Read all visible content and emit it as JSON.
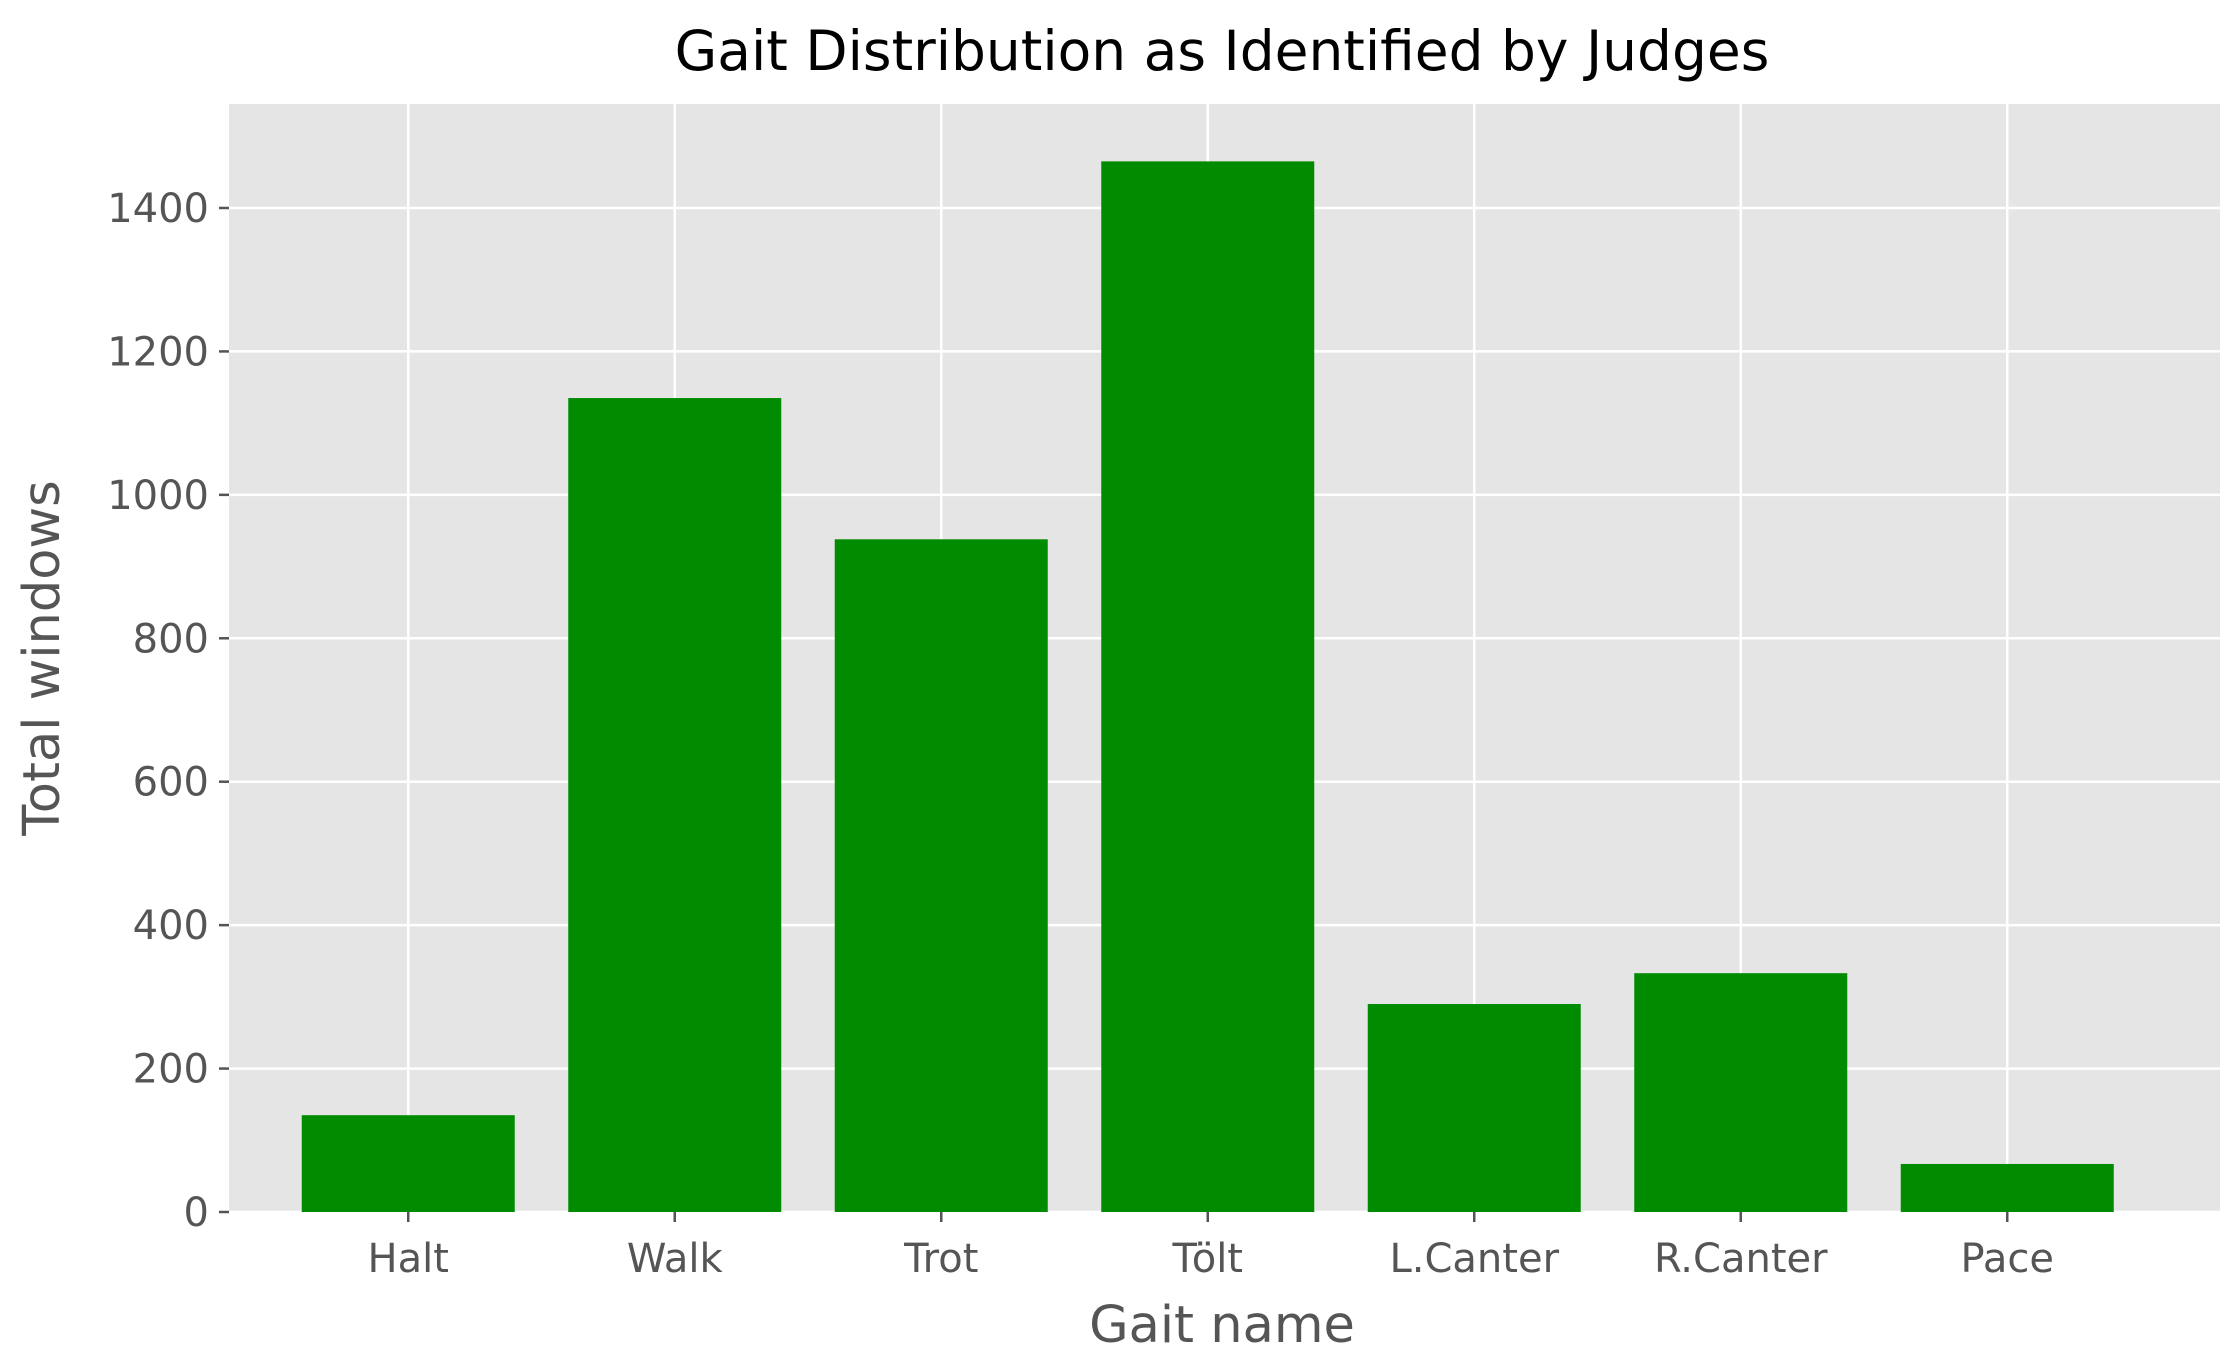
{
  "chart_data": {
    "type": "bar",
    "title": "Gait Distribution as Identified by Judges",
    "xlabel": "Gait name",
    "ylabel": "Total windows",
    "categories": [
      "Halt",
      "Walk",
      "Trot",
      "Tölt",
      "L.Canter",
      "R.Canter",
      "Pace"
    ],
    "values": [
      135,
      1135,
      938,
      1465,
      290,
      333,
      67
    ],
    "ylim": [
      0,
      1545
    ],
    "yticks": [
      0,
      200,
      400,
      600,
      800,
      1000,
      1200,
      1400
    ],
    "grid": true,
    "bar_color": "#008b00",
    "background_color": "#e5e5e5"
  }
}
